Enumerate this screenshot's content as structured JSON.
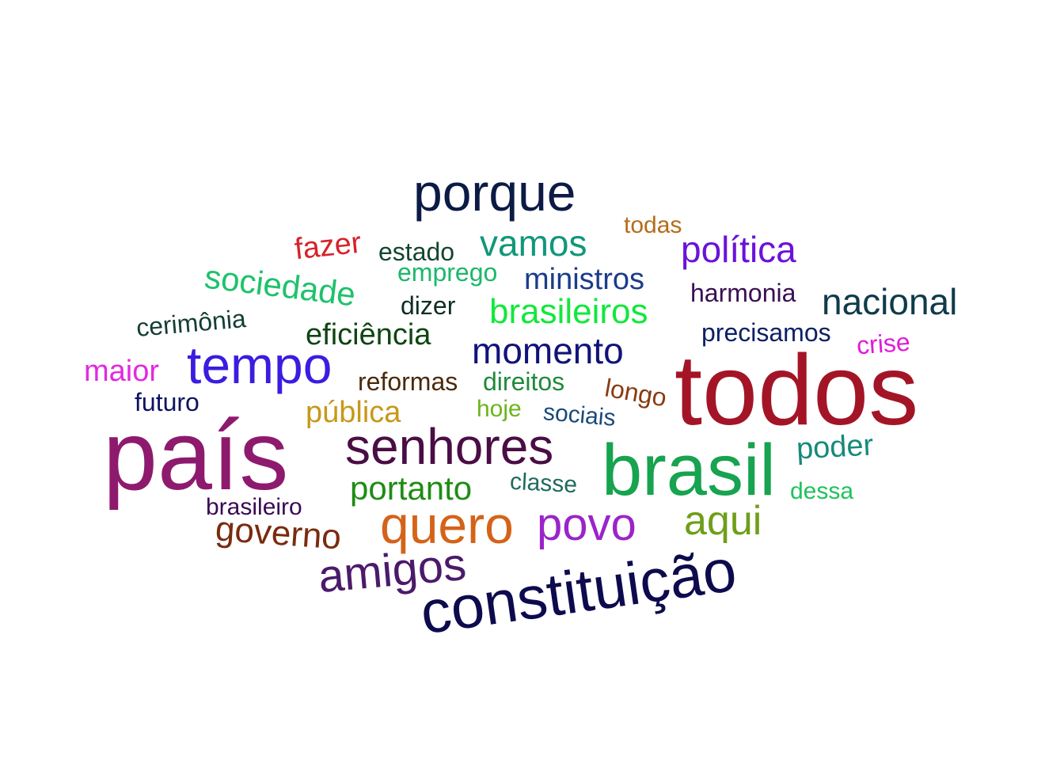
{
  "cloud": {
    "words": [
      {
        "text": "todos",
        "color": "#a31526"
      },
      {
        "text": "país",
        "color": "#8e1a6e"
      },
      {
        "text": "brasil",
        "color": "#17a34f"
      },
      {
        "text": "constituição",
        "color": "#0d0b4e"
      },
      {
        "text": "senhores",
        "color": "#4a0d44"
      },
      {
        "text": "quero",
        "color": "#d4631a"
      },
      {
        "text": "porque",
        "color": "#0b1b45"
      },
      {
        "text": "tempo",
        "color": "#3a1de0"
      },
      {
        "text": "amigos",
        "color": "#4b1a6b"
      },
      {
        "text": "povo",
        "color": "#9a24c9"
      },
      {
        "text": "aqui",
        "color": "#6f9e1a"
      },
      {
        "text": "nacional",
        "color": "#0f3b4a"
      },
      {
        "text": "momento",
        "color": "#11137a"
      },
      {
        "text": "política",
        "color": "#6a12d9"
      },
      {
        "text": "governo",
        "color": "#7a2b0e"
      },
      {
        "text": "brasileiros",
        "color": "#12e83b"
      },
      {
        "text": "vamos",
        "color": "#11977a"
      },
      {
        "text": "sociedade",
        "color": "#1ec26b"
      },
      {
        "text": "portanto",
        "color": "#1f8c14"
      },
      {
        "text": "eficiência",
        "color": "#0f4512"
      },
      {
        "text": "ministros",
        "color": "#1b3c8c"
      },
      {
        "text": "poder",
        "color": "#168a7a"
      },
      {
        "text": "maior",
        "color": "#e22ae0"
      },
      {
        "text": "pública",
        "color": "#c7991a"
      },
      {
        "text": "fazer",
        "color": "#d6222b"
      },
      {
        "text": "cerimônia",
        "color": "#143d35"
      },
      {
        "text": "estado",
        "color": "#14452f"
      },
      {
        "text": "emprego",
        "color": "#1bb86a"
      },
      {
        "text": "dizer",
        "color": "#0f2e24"
      },
      {
        "text": "reformas",
        "color": "#4b2a0a"
      },
      {
        "text": "direitos",
        "color": "#1f8a3c"
      },
      {
        "text": "harmonia",
        "color": "#3a0f52"
      },
      {
        "text": "precisamos",
        "color": "#0d2066"
      },
      {
        "text": "todas",
        "color": "#b56b1a"
      },
      {
        "text": "crise",
        "color": "#e01ad8"
      },
      {
        "text": "longo",
        "color": "#8a3a12"
      },
      {
        "text": "futuro",
        "color": "#0d1461"
      },
      {
        "text": "hoje",
        "color": "#6bb51a"
      },
      {
        "text": "sociais",
        "color": "#1a4a7a"
      },
      {
        "text": "classe",
        "color": "#1f6b5e"
      },
      {
        "text": "brasileiro",
        "color": "#3a0a52"
      },
      {
        "text": "dessa",
        "color": "#1fc25e"
      }
    ]
  }
}
